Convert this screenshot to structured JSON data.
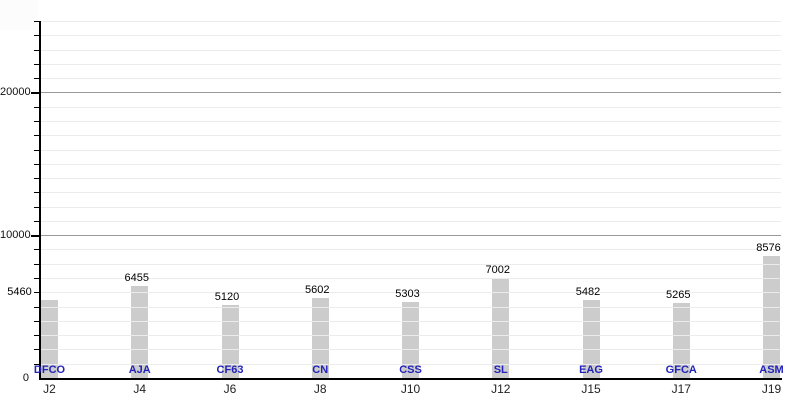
{
  "chart_data": {
    "type": "bar",
    "title": "",
    "x_tick_labels": [
      "J2",
      "J4",
      "J6",
      "J8",
      "J10",
      "J12",
      "J15",
      "J17",
      "J19"
    ],
    "bar_labels": [
      "DFCO",
      "AJA",
      "CF63",
      "CN",
      "CSS",
      "SL",
      "EAG",
      "GFCA",
      "ASM"
    ],
    "values": [
      5460,
      6455,
      5120,
      5602,
      5303,
      7002,
      5482,
      5265,
      8576
    ],
    "ylim": [
      0,
      25000
    ],
    "y_major_ticks": [
      0,
      10000,
      20000
    ],
    "y_major_step": 10000,
    "y_minor_step": 1000,
    "grid": true,
    "legend_visible": false,
    "colors": {
      "bar": "#cccccc",
      "bar_label": "#2222bb",
      "value_label": "#000000",
      "axis": "#000000",
      "major_grid": "#999999",
      "minor_grid": "#ececec",
      "x_tick_label": "#222222",
      "y_tick_label": "#111111"
    }
  }
}
